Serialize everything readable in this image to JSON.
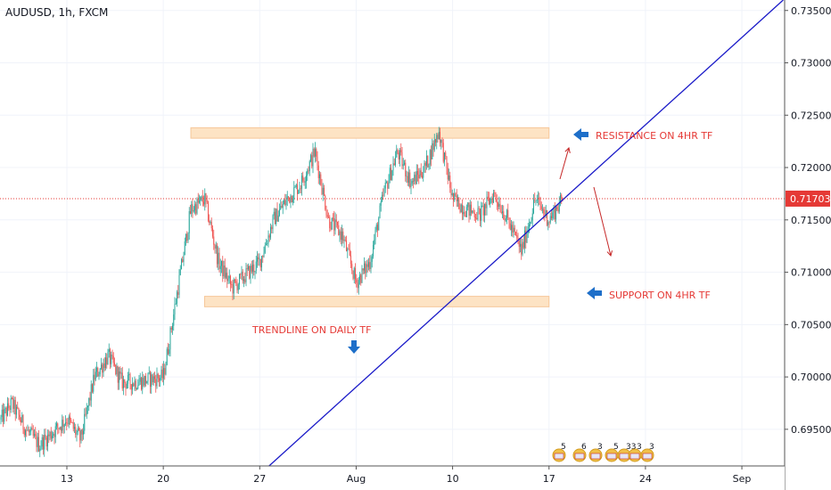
{
  "header": {
    "title": "AUDUSD, 1h, FXCM"
  },
  "colors": {
    "up": "#26a69a",
    "down": "#ef5350",
    "zone_fill": "#fde3c4",
    "zone_stroke": "#f6c79a",
    "trendline": "#1a1ac8",
    "annotation_text": "#e53935",
    "annotation_arrow": "#1e6fc9",
    "current_price": "#e53935",
    "grid": "#f0f3fa"
  },
  "annotations": {
    "resistance": "RESISTANCE ON 4HR TF",
    "support": "SUPPORT ON 4HR TF",
    "trendline": "TRENDLINE ON DAILY TF"
  },
  "chart_data": {
    "type": "candlestick",
    "symbol": "AUDUSD",
    "timeframe": "1h",
    "source": "FXCM",
    "x_ticks": [
      "13",
      "20",
      "27",
      "Aug",
      "10",
      "17",
      "24",
      "Sep"
    ],
    "x_tick_dates": [
      "2020-07-13",
      "2020-07-20",
      "2020-07-27",
      "2020-08-03",
      "2020-08-10",
      "2020-08-17",
      "2020-08-24",
      "2020-08-31"
    ],
    "y_ticks": [
      "0.73500",
      "0.73000",
      "0.72500",
      "0.72000",
      "0.71500",
      "0.71000",
      "0.70500",
      "0.70000",
      "0.69500"
    ],
    "ylim": [
      0.6915,
      0.736
    ],
    "current_price": "0.71703",
    "grid": true,
    "zones": [
      {
        "name": "resistance",
        "from": "2020-07-22",
        "to": "2020-08-17",
        "low": 0.7228,
        "high": 0.7238
      },
      {
        "name": "support",
        "from": "2020-07-23",
        "to": "2020-08-17",
        "low": 0.7067,
        "high": 0.7077
      }
    ],
    "trendline": {
      "start": {
        "date": "2020-07-26",
        "price": 0.6895
      },
      "end": {
        "date": "2020-09-03",
        "price": 0.736
      }
    },
    "price_path": [
      {
        "date": "2020-07-08",
        "price": 0.6955
      },
      {
        "date": "2020-07-09",
        "price": 0.6975
      },
      {
        "date": "2020-07-10",
        "price": 0.695
      },
      {
        "date": "2020-07-11",
        "price": 0.6935
      },
      {
        "date": "2020-07-13",
        "price": 0.696
      },
      {
        "date": "2020-07-14",
        "price": 0.694
      },
      {
        "date": "2020-07-15",
        "price": 0.7
      },
      {
        "date": "2020-07-16",
        "price": 0.702
      },
      {
        "date": "2020-07-17",
        "price": 0.6995
      },
      {
        "date": "2020-07-18",
        "price": 0.6995
      },
      {
        "date": "2020-07-20",
        "price": 0.7
      },
      {
        "date": "2020-07-21",
        "price": 0.708
      },
      {
        "date": "2020-07-22",
        "price": 0.716
      },
      {
        "date": "2020-07-23",
        "price": 0.717
      },
      {
        "date": "2020-07-24",
        "price": 0.711
      },
      {
        "date": "2020-07-25",
        "price": 0.7085
      },
      {
        "date": "2020-07-27",
        "price": 0.711
      },
      {
        "date": "2020-07-28",
        "price": 0.715
      },
      {
        "date": "2020-07-29",
        "price": 0.717
      },
      {
        "date": "2020-07-30",
        "price": 0.7185
      },
      {
        "date": "2020-07-31",
        "price": 0.7215
      },
      {
        "date": "2020-08-01",
        "price": 0.715
      },
      {
        "date": "2020-08-02",
        "price": 0.7135
      },
      {
        "date": "2020-08-03",
        "price": 0.709
      },
      {
        "date": "2020-08-04",
        "price": 0.711
      },
      {
        "date": "2020-08-05",
        "price": 0.7175
      },
      {
        "date": "2020-08-06",
        "price": 0.7215
      },
      {
        "date": "2020-08-07",
        "price": 0.7185
      },
      {
        "date": "2020-08-08",
        "price": 0.72
      },
      {
        "date": "2020-08-09",
        "price": 0.7235
      },
      {
        "date": "2020-08-10",
        "price": 0.717
      },
      {
        "date": "2020-08-11",
        "price": 0.716
      },
      {
        "date": "2020-08-12",
        "price": 0.7155
      },
      {
        "date": "2020-08-13",
        "price": 0.7175
      },
      {
        "date": "2020-08-14",
        "price": 0.715
      },
      {
        "date": "2020-08-15",
        "price": 0.712
      },
      {
        "date": "2020-08-16",
        "price": 0.717
      },
      {
        "date": "2020-08-17",
        "price": 0.715
      },
      {
        "date": "2020-08-18",
        "price": 0.717
      }
    ]
  },
  "events": [
    "5",
    "6",
    "3",
    "5",
    "33",
    "3",
    "3"
  ]
}
